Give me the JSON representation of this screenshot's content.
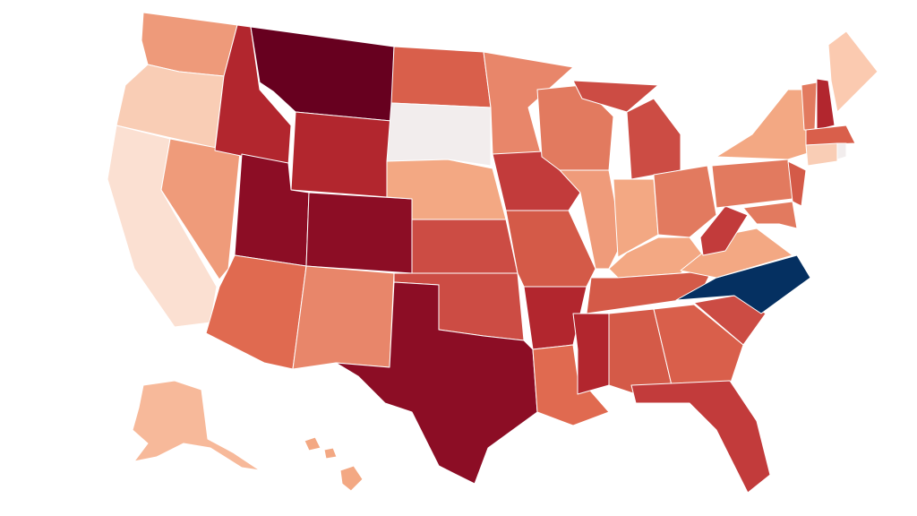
{
  "map": {
    "fills": [
      "#ee9a7a",
      "#f9cdb5",
      "#fbe0d2",
      "#ef9b7a",
      "#b2262e",
      "#67001f",
      "#b2262e",
      "#8c0d25",
      "#8c0d25",
      "#e06a50",
      "#e8866a",
      "#d95f4b",
      "#f2eded",
      "#f3a883",
      "#cc4c44",
      "#cc4c44",
      "#8c0d25",
      "#e8866a",
      "#c23b3b",
      "#d45a48",
      "#b2262e",
      "#e06a50",
      "#e27a5f",
      "#ef9b7a",
      "#cc4c44",
      "#cc4c44",
      "#f3a883",
      "#e27a5f",
      "#f3a883",
      "#d45a48",
      "#b2262e",
      "#d45a48",
      "#d95f4b",
      "#c23b3b",
      "#cc4c44",
      "#053061",
      "#f3a883",
      "#c23b3b",
      "#e27a5f",
      "#f3a883",
      "#e27a5f",
      "#d45a48",
      "#e27a5f",
      "#b2262e",
      "#fbcab0",
      "#d95f4b",
      "#f9cdb5",
      "#f2eded",
      "#f7b99a",
      "#f3a883",
      "#f3a883",
      "#f3a883"
    ]
  }
}
